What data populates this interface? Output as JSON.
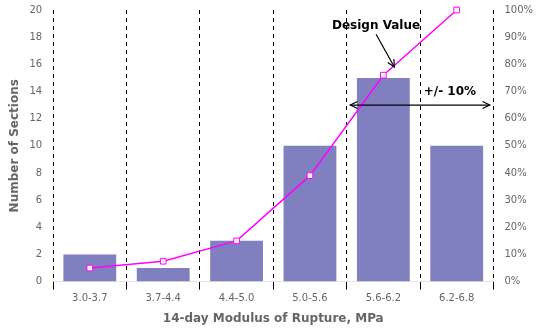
{
  "chart_data": {
    "type": "bar",
    "xlabel": "14-day Modulus of Rupture, MPa",
    "ylabel": "Number of Sections",
    "categories": [
      "3.0-3.7",
      "3.7-4.4",
      "4.4-5.0",
      "5.0-5.6",
      "5.6-6.2",
      "6.2-6.8"
    ],
    "series": [
      {
        "type": "bar",
        "color": "#8080c0",
        "values": [
          2,
          1,
          3,
          10,
          15,
          10
        ]
      },
      {
        "type": "line",
        "color": "#ff00ff",
        "marker": "square",
        "line_style": "solid",
        "values": [
          1,
          1.5,
          3,
          7.8,
          15.2,
          20
        ]
      }
    ],
    "ylim": [
      0,
      20
    ],
    "yticks": [
      0,
      2,
      4,
      6,
      8,
      10,
      12,
      14,
      16,
      18,
      20
    ],
    "y2lim": [
      0,
      100
    ],
    "y2ticks": [
      {
        "value": 0,
        "label": "0%"
      },
      {
        "value": 10,
        "label": "10%"
      },
      {
        "value": 20,
        "label": "20%"
      },
      {
        "value": 30,
        "label": "30%"
      },
      {
        "value": 40,
        "label": "40%"
      },
      {
        "value": 50,
        "label": "50%"
      },
      {
        "value": 60,
        "label": "60%"
      },
      {
        "value": 70,
        "label": "70%"
      },
      {
        "value": 80,
        "label": "80%"
      },
      {
        "value": 90,
        "label": "90%"
      },
      {
        "value": 100,
        "label": "100%"
      }
    ],
    "grid": "x",
    "annotations": [
      {
        "text": "Design Value"
      },
      {
        "text": "+/- 10%"
      }
    ]
  }
}
